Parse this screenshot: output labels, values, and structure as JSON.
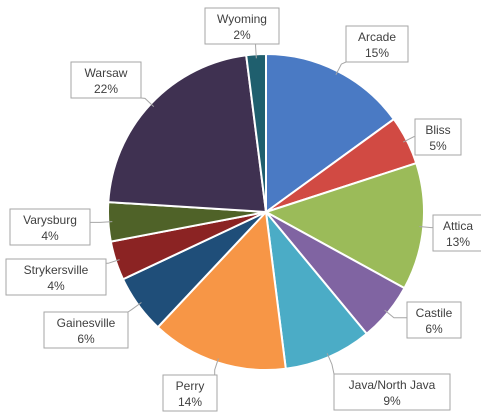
{
  "chart_data": {
    "type": "pie",
    "title": "",
    "start_angle_deg": 0,
    "direction": "clockwise",
    "legend": "none",
    "data_labels": "category-name and percentage in callouts",
    "slices": [
      {
        "name": "Arcade",
        "value": 15,
        "label": "15%",
        "color": "#4a7ac4"
      },
      {
        "name": "Bliss",
        "value": 5,
        "label": "5%",
        "color": "#d14a43"
      },
      {
        "name": "Attica",
        "value": 13,
        "label": "13%",
        "color": "#9bbb59"
      },
      {
        "name": "Castile",
        "value": 6,
        "label": "6%",
        "color": "#8064a2"
      },
      {
        "name": "Java/North Java",
        "value": 9,
        "label": "9%",
        "color": "#4bacc6"
      },
      {
        "name": "Perry",
        "value": 14,
        "label": "14%",
        "color": "#f79646"
      },
      {
        "name": "Gainesville",
        "value": 6,
        "label": "6%",
        "color": "#1f4e79"
      },
      {
        "name": "Strykersville",
        "value": 4,
        "label": "4%",
        "color": "#8b2323"
      },
      {
        "name": "Varysburg",
        "value": 4,
        "label": "4%",
        "color": "#4f6228"
      },
      {
        "name": "Warsaw",
        "value": 22,
        "label": "22%",
        "color": "#3f3151"
      },
      {
        "name": "Wyoming",
        "value": 2,
        "label": "2%",
        "color": "#1f5f6e"
      }
    ]
  }
}
